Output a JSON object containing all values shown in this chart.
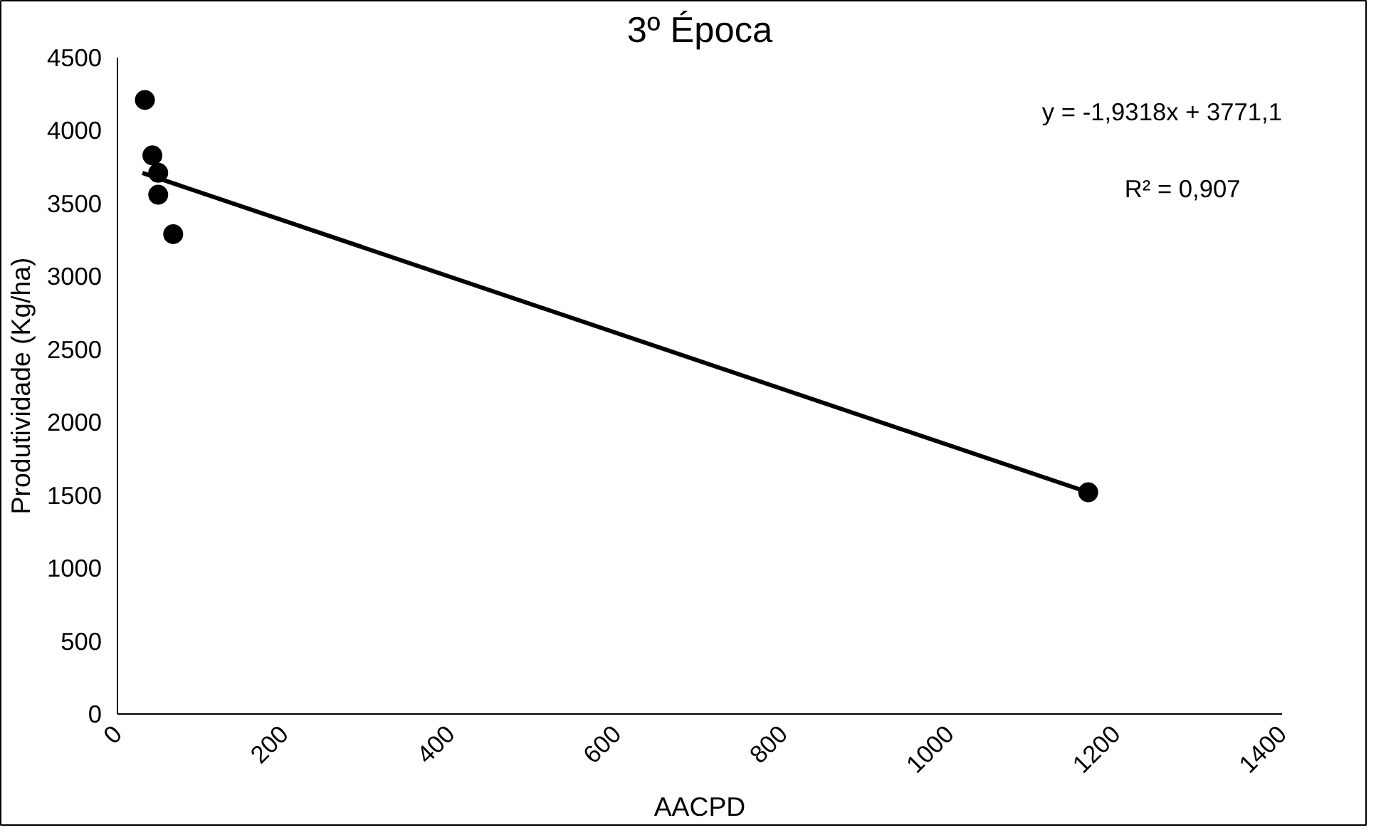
{
  "chart_data": {
    "type": "scatter",
    "title": "3º Época",
    "xlabel": "AACPD",
    "ylabel": "Produtividade (Kg/ha)",
    "xlim": [
      0,
      1400
    ],
    "xticks": [
      0,
      200,
      400,
      600,
      800,
      1000,
      1200,
      1400
    ],
    "ylim": [
      0,
      4500
    ],
    "yticks": [
      0,
      500,
      1000,
      1500,
      2000,
      2500,
      3000,
      3500,
      4000,
      4500
    ],
    "grid": false,
    "marker": "circle",
    "series": [
      {
        "color": "#000000",
        "x": [
          33,
          42,
          49,
          49,
          67,
          1167
        ],
        "values": [
          4210,
          3830,
          3710,
          3560,
          3290,
          1520
        ]
      },
      {
        "type": "line",
        "color": "#000000",
        "line_style": "solid",
        "marker": "none",
        "x": [
          30,
          1167
        ],
        "values": [
          3710,
          1520
        ]
      }
    ],
    "annotations": [
      "y = -1,9318x + 3771,1",
      "R² = 0,907"
    ]
  }
}
